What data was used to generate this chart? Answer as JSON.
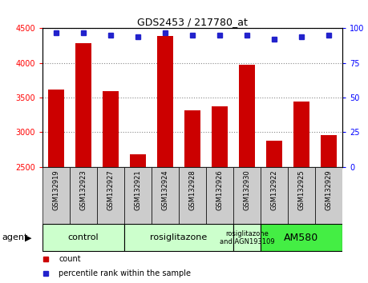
{
  "title": "GDS2453 / 217780_at",
  "samples": [
    "GSM132919",
    "GSM132923",
    "GSM132927",
    "GSM132921",
    "GSM132924",
    "GSM132928",
    "GSM132926",
    "GSM132930",
    "GSM132922",
    "GSM132925",
    "GSM132929"
  ],
  "counts": [
    3620,
    4280,
    3590,
    2680,
    4390,
    3320,
    3380,
    3970,
    2880,
    3440,
    2960
  ],
  "percentiles": [
    97,
    97,
    95,
    94,
    97,
    95,
    95,
    95,
    92,
    94,
    95
  ],
  "bar_color": "#cc0000",
  "dot_color": "#2222cc",
  "ylim_left": [
    2500,
    4500
  ],
  "ylim_right": [
    0,
    100
  ],
  "yticks_left": [
    2500,
    3000,
    3500,
    4000,
    4500
  ],
  "yticks_right": [
    0,
    25,
    50,
    75,
    100
  ],
  "groups": [
    {
      "label": "control",
      "start": 0,
      "end": 3,
      "color": "#ccffcc",
      "fontsize": 8
    },
    {
      "label": "rosiglitazone",
      "start": 3,
      "end": 7,
      "color": "#ccffcc",
      "fontsize": 8
    },
    {
      "label": "rosiglitazone\nand AGN193109",
      "start": 7,
      "end": 8,
      "color": "#ccffcc",
      "fontsize": 6
    },
    {
      "label": "AM580",
      "start": 8,
      "end": 11,
      "color": "#44ee44",
      "fontsize": 9
    }
  ],
  "agent_label": "agent",
  "legend_count_label": "count",
  "legend_percentile_label": "percentile rank within the sample",
  "background_color": "#ffffff",
  "plot_bg_color": "#ffffff",
  "tick_bg_color": "#cccccc"
}
